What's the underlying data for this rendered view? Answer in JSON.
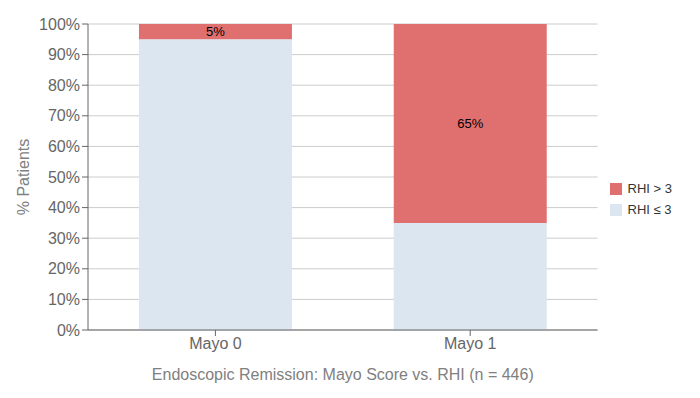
{
  "chart_data": {
    "type": "bar",
    "stacked": true,
    "categories": [
      "Mayo 0",
      "Mayo 1"
    ],
    "series": [
      {
        "name": "RHI ≤ 3",
        "color": "#dce6f1",
        "values": [
          95,
          35
        ]
      },
      {
        "name": "RHI > 3",
        "color": "#e07070",
        "values": [
          5,
          65
        ],
        "data_labels": true,
        "value_labels": [
          "5%",
          "65%"
        ]
      }
    ],
    "xlabel": "Endoscopic Remission: Mayo Score vs. RHI (n = 446)",
    "ylabel": "% Patients",
    "ylim": [
      0,
      100
    ],
    "yticks": [
      {
        "value": 0,
        "label": "0%"
      },
      {
        "value": 10,
        "label": "10%"
      },
      {
        "value": 20,
        "label": "20%"
      },
      {
        "value": 30,
        "label": "30%"
      },
      {
        "value": 40,
        "label": "40%"
      },
      {
        "value": 50,
        "label": "50%"
      },
      {
        "value": 60,
        "label": "60%"
      },
      {
        "value": 70,
        "label": "70%"
      },
      {
        "value": 80,
        "label": "80%"
      },
      {
        "value": 90,
        "label": "90%"
      },
      {
        "value": 100,
        "label": "100%"
      }
    ],
    "grid": true,
    "legend": "right"
  }
}
